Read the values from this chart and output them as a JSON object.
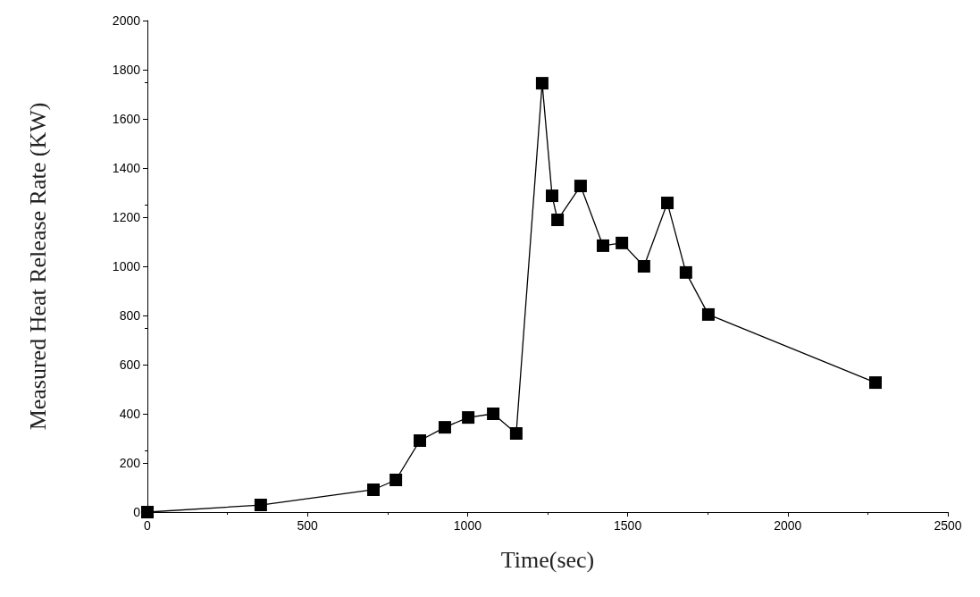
{
  "chart_data": {
    "type": "line",
    "xlabel": "Time(sec)",
    "ylabel": "Measured Heat Release Rate (KW)",
    "x": [
      0,
      354,
      706,
      776,
      851,
      929,
      1002,
      1080,
      1152,
      1233,
      1264,
      1281,
      1353,
      1423,
      1482,
      1551,
      1624,
      1682,
      1752,
      2274
    ],
    "series": [
      {
        "color": "#000000",
        "values": [
          0,
          29,
          91,
          131,
          291,
          345,
          385,
          400,
          320,
          1745,
          1287,
          1189,
          1327,
          1084,
          1095,
          1000,
          1258,
          975,
          804,
          527
        ]
      }
    ],
    "xlim": [
      0,
      2500
    ],
    "xticks": [
      0,
      500,
      1000,
      1500,
      2000,
      2500
    ],
    "ylim": [
      0,
      2000
    ],
    "yticks": [
      0,
      200,
      400,
      600,
      800,
      1000,
      1200,
      1400,
      1600,
      1800,
      2000
    ],
    "grid": false,
    "marker": "square",
    "line_style": "solid"
  }
}
